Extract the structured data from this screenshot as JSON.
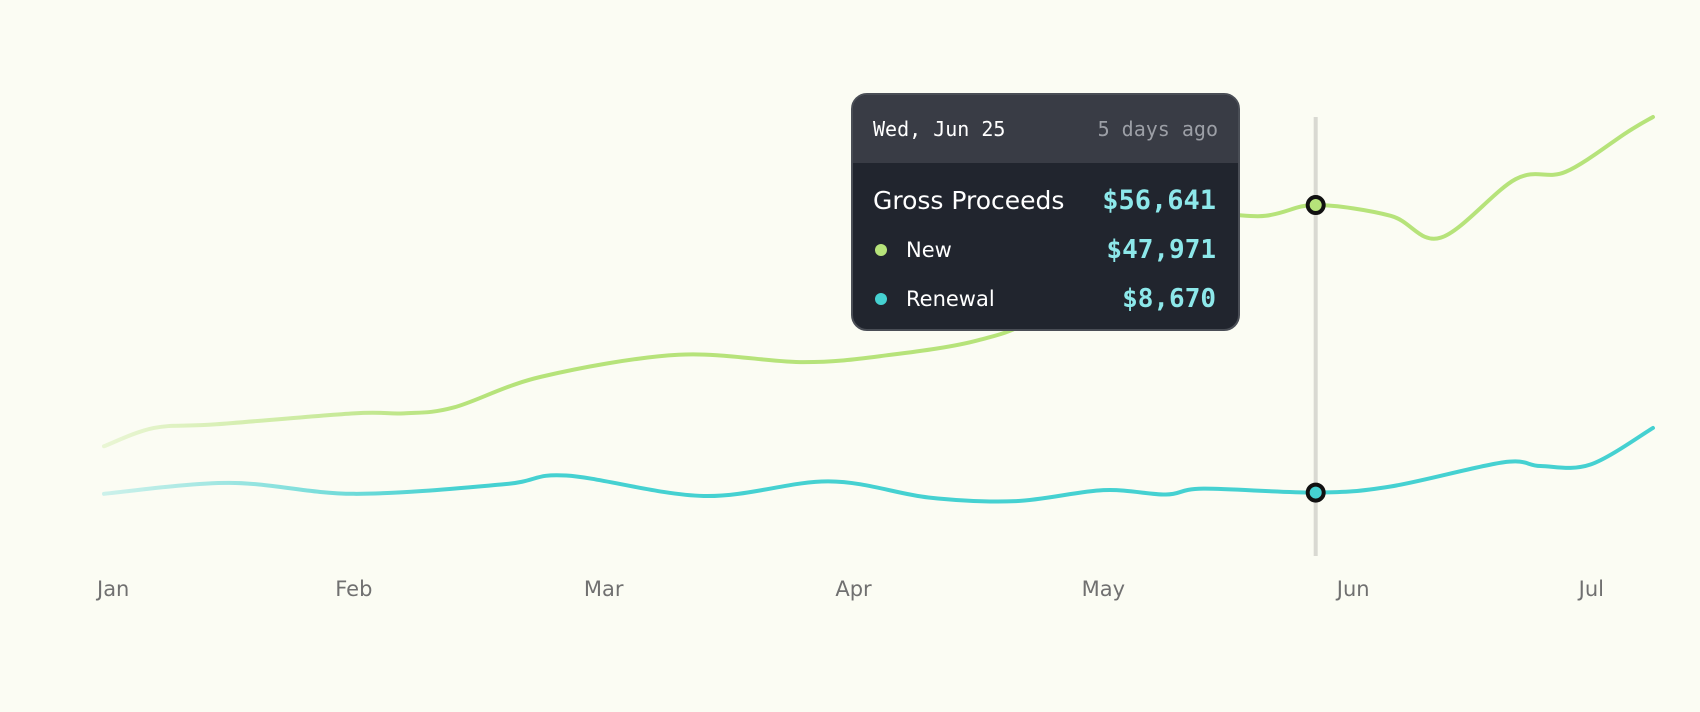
{
  "chart_data": {
    "type": "line",
    "x_labels": [
      "Jan",
      "Feb",
      "Mar",
      "Apr",
      "May",
      "Jun",
      "Jul"
    ],
    "ylim": [
      0,
      60000
    ],
    "grid": true,
    "series": [
      {
        "name": "New",
        "color": "#b6e37a",
        "points": [
          {
            "x": 0,
            "y": 15000
          },
          {
            "x": 0.2,
            "y": 17500
          },
          {
            "x": 0.45,
            "y": 18000
          },
          {
            "x": 1.0,
            "y": 19500
          },
          {
            "x": 1.2,
            "y": 19500
          },
          {
            "x": 1.4,
            "y": 20300
          },
          {
            "x": 1.75,
            "y": 24500
          },
          {
            "x": 2.3,
            "y": 27500
          },
          {
            "x": 2.8,
            "y": 26500
          },
          {
            "x": 3.15,
            "y": 27500
          },
          {
            "x": 3.5,
            "y": 29500
          },
          {
            "x": 3.75,
            "y": 33000
          },
          {
            "x": 4.3,
            "y": 45500
          },
          {
            "x": 4.65,
            "y": 46500
          },
          {
            "x": 4.85,
            "y": 47971
          },
          {
            "x": 5.15,
            "y": 46500
          },
          {
            "x": 5.35,
            "y": 43500
          },
          {
            "x": 5.65,
            "y": 51500
          },
          {
            "x": 5.85,
            "y": 52500
          },
          {
            "x": 6.1,
            "y": 58000
          },
          {
            "x": 6.2,
            "y": 60000
          }
        ]
      },
      {
        "name": "Renewal",
        "color": "#45d1d1",
        "points": [
          {
            "x": 0,
            "y": 8500
          },
          {
            "x": 0.5,
            "y": 10000
          },
          {
            "x": 1.0,
            "y": 8500
          },
          {
            "x": 1.6,
            "y": 9800
          },
          {
            "x": 1.85,
            "y": 11000
          },
          {
            "x": 2.4,
            "y": 8200
          },
          {
            "x": 2.9,
            "y": 10200
          },
          {
            "x": 3.3,
            "y": 8000
          },
          {
            "x": 3.65,
            "y": 7500
          },
          {
            "x": 4.0,
            "y": 9000
          },
          {
            "x": 4.25,
            "y": 8400
          },
          {
            "x": 4.4,
            "y": 9200
          },
          {
            "x": 4.85,
            "y": 8670
          },
          {
            "x": 5.15,
            "y": 9500
          },
          {
            "x": 5.6,
            "y": 12800
          },
          {
            "x": 5.75,
            "y": 12300
          },
          {
            "x": 5.95,
            "y": 12500
          },
          {
            "x": 6.2,
            "y": 17500
          }
        ]
      }
    ],
    "highlight_x": 4.85,
    "tooltip": {
      "date": "Wed, Jun 25",
      "relative": "5 days ago",
      "total_label": "Gross Proceeds",
      "total_value": "$56,641",
      "rows": [
        {
          "label": "New",
          "value": "$47,971",
          "color": "#b6e37a"
        },
        {
          "label": "Renewal",
          "value": "$8,670",
          "color": "#45d1d1"
        }
      ]
    }
  }
}
